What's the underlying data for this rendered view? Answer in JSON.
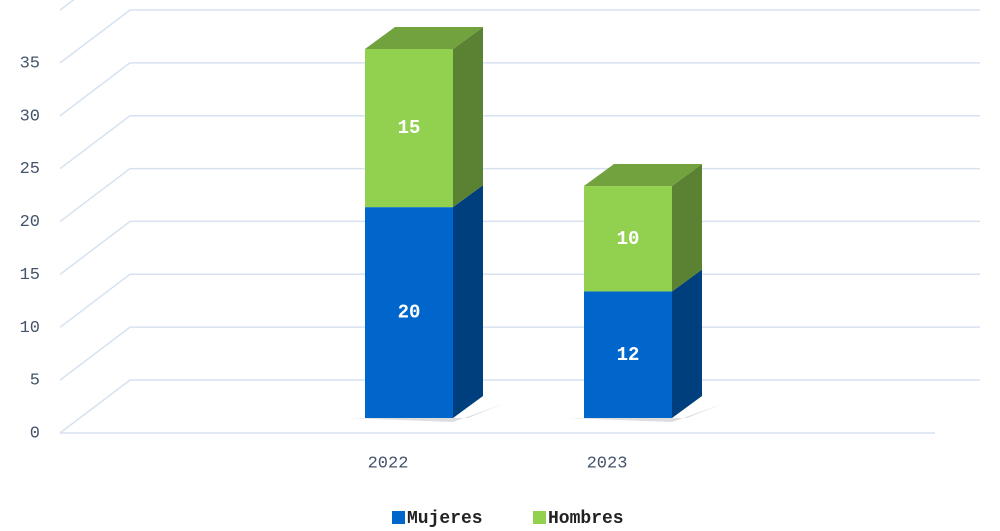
{
  "chart_data": {
    "type": "bar3d_stacked",
    "categories": [
      "2022",
      "2023"
    ],
    "series": [
      {
        "name": "Mujeres",
        "color": "#0066cc",
        "values": [
          20,
          12
        ]
      },
      {
        "name": "Hombres",
        "color": "#92d050",
        "values": [
          15,
          10
        ]
      }
    ],
    "ylim": [
      0,
      40
    ],
    "yticks": [
      0,
      5,
      10,
      15,
      20,
      25,
      30,
      35
    ],
    "grid": true,
    "legend": "bottom"
  }
}
